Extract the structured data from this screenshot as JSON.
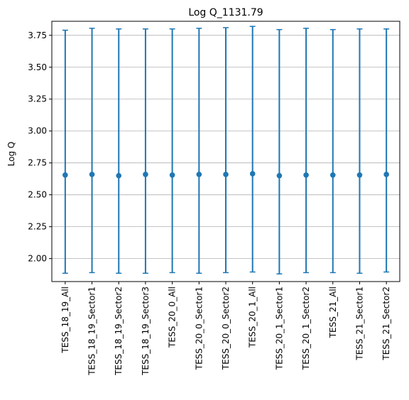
{
  "chart_data": {
    "type": "scatter",
    "title": "Log Q_1131.79",
    "xlabel": "",
    "ylabel": "Log Q",
    "ylim": [
      1.82,
      3.86
    ],
    "yticks": [
      "2.00",
      "2.25",
      "2.50",
      "2.75",
      "3.00",
      "3.25",
      "3.50",
      "3.75"
    ],
    "grid": "horizontal",
    "color": "#1f77b4",
    "categories": [
      "TESS_18_19_All",
      "TESS_18_19_Sector1",
      "TESS_18_19_Sector2",
      "TESS_18_19_Sector3",
      "TESS_20_0_All",
      "TESS_20_0_Sector1",
      "TESS_20_0_Sector2",
      "TESS_20_1_All",
      "TESS_20_1_Sector1",
      "TESS_20_1_Sector2",
      "TESS_21_All",
      "TESS_21_Sector1",
      "TESS_21_Sector2"
    ],
    "values": [
      2.655,
      2.66,
      2.65,
      2.66,
      2.655,
      2.66,
      2.66,
      2.665,
      2.65,
      2.655,
      2.655,
      2.655,
      2.66
    ],
    "error_low": [
      1.885,
      1.89,
      1.885,
      1.885,
      1.89,
      1.885,
      1.89,
      1.895,
      1.88,
      1.89,
      1.89,
      1.885,
      1.895
    ],
    "error_high": [
      3.79,
      3.805,
      3.8,
      3.8,
      3.8,
      3.805,
      3.81,
      3.82,
      3.795,
      3.805,
      3.795,
      3.8,
      3.8
    ]
  }
}
